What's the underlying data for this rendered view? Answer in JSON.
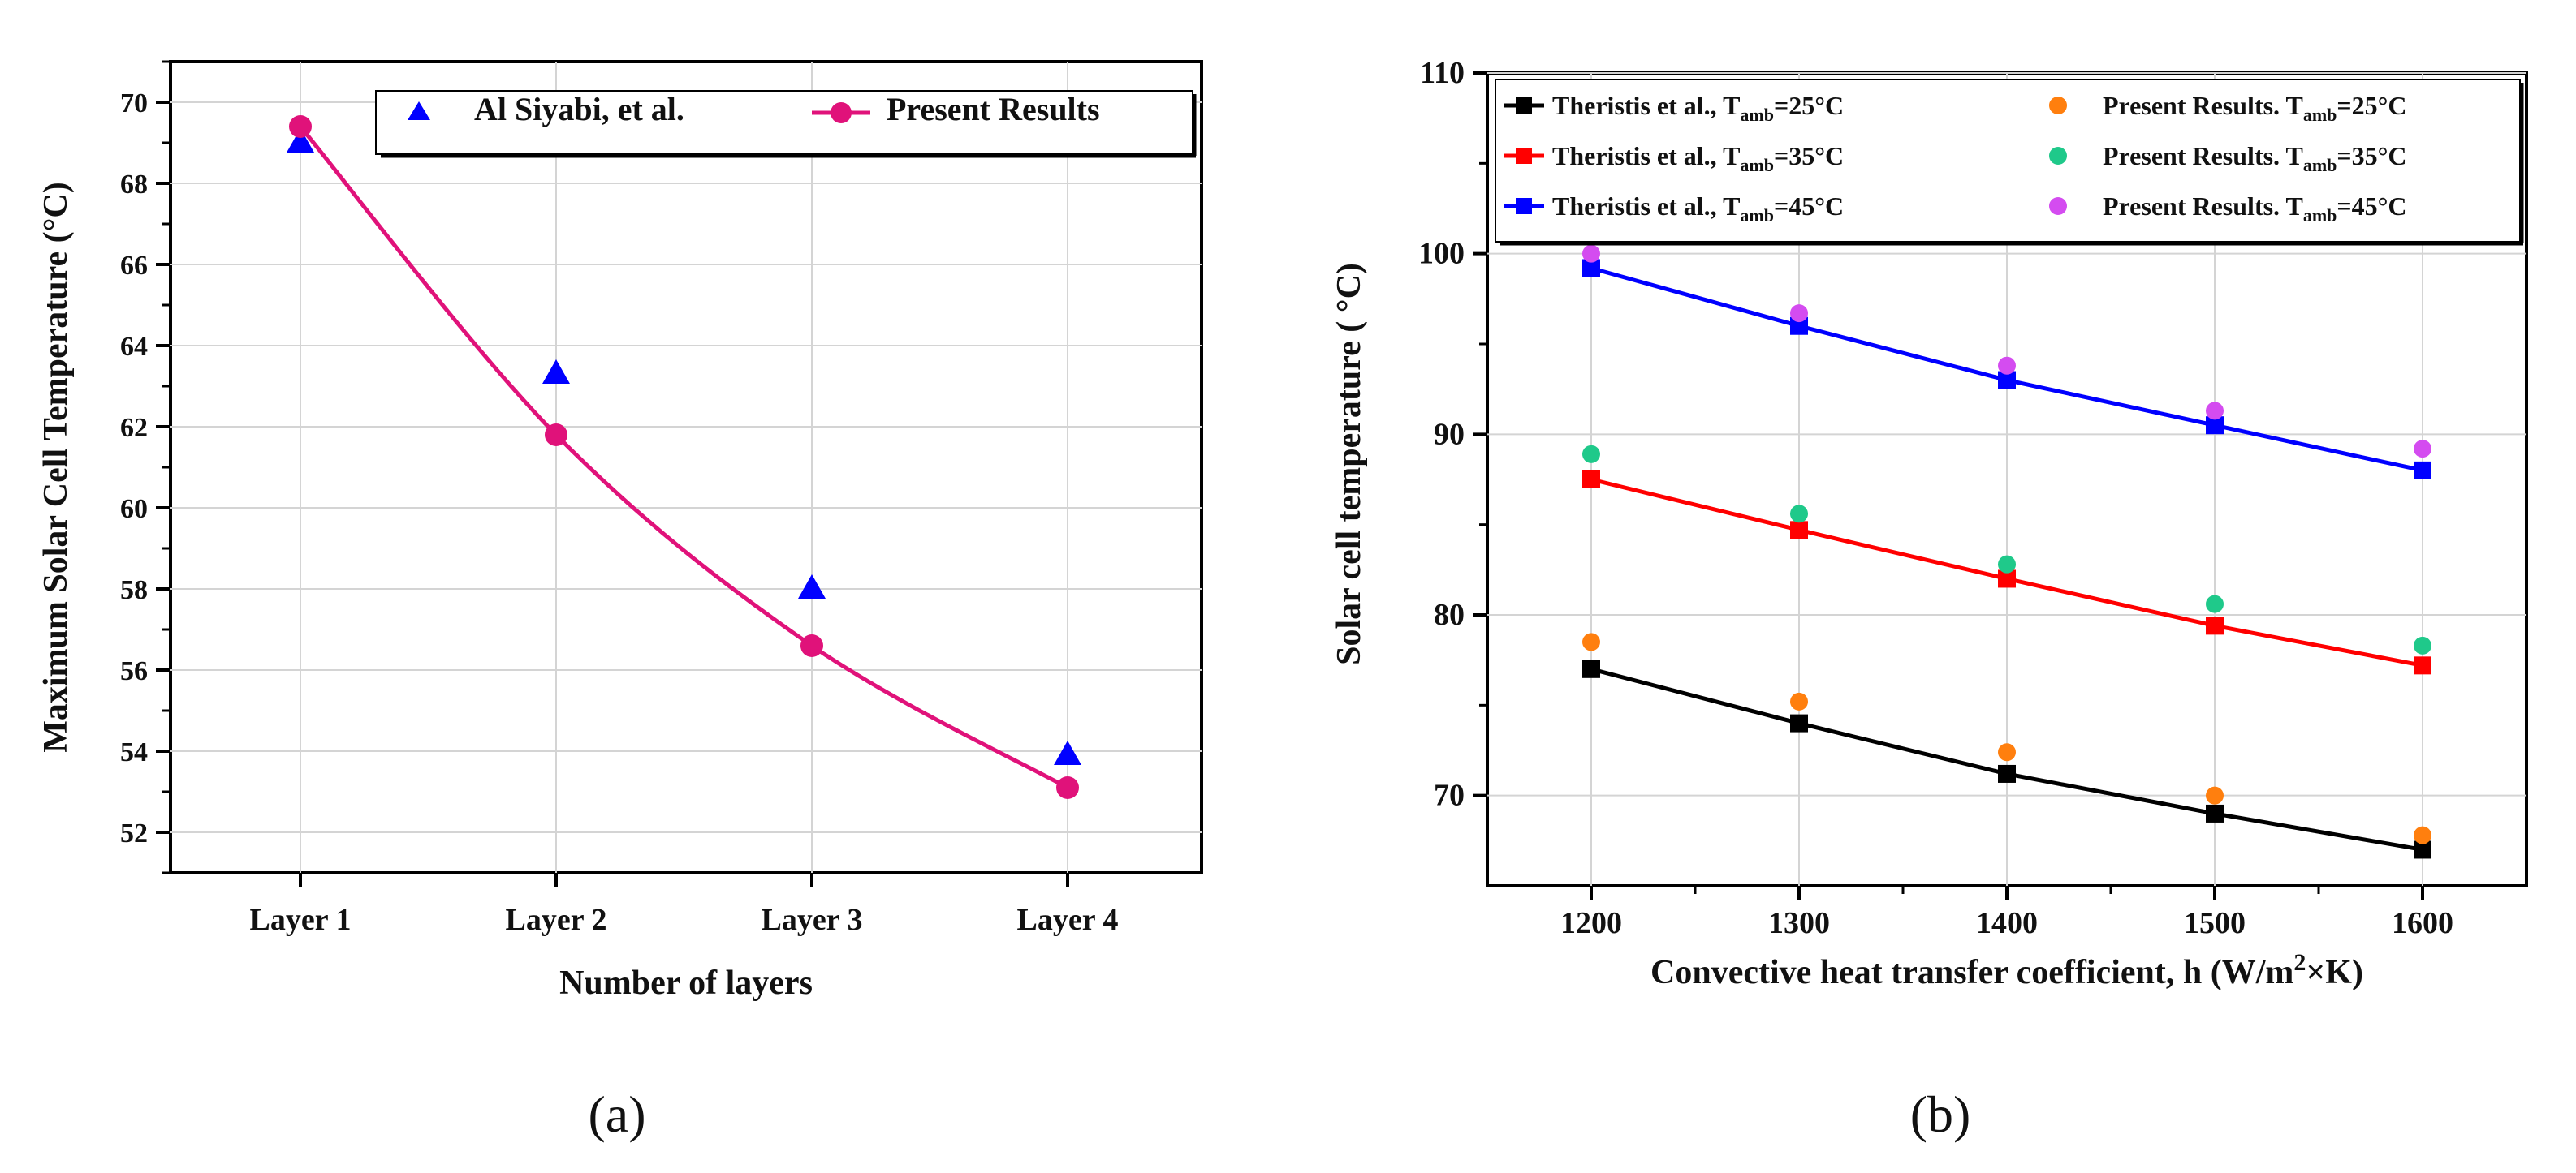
{
  "chart_data": [
    {
      "type": "line",
      "panel_label": "(a)",
      "xlabel": "Number of layers",
      "ylabel": "Maximum Solar Cell Temperature (°C)",
      "categories": [
        "Layer 1",
        "Layer 2",
        "Layer 3",
        "Layer 4"
      ],
      "ylim": [
        51,
        71
      ],
      "yticks": [
        52,
        54,
        56,
        58,
        60,
        62,
        64,
        66,
        68,
        70
      ],
      "grid": true,
      "legend_position": "top-right",
      "series": [
        {
          "name": "Al Siyabi, et al.",
          "marker": "triangle",
          "color": "#0000ff",
          "line": false,
          "values": [
            69.0,
            63.3,
            58.0,
            53.9
          ]
        },
        {
          "name": "Present Results",
          "marker": "circle",
          "color": "#e0127a",
          "line": true,
          "values": [
            69.4,
            61.8,
            56.6,
            53.1
          ]
        }
      ]
    },
    {
      "type": "line",
      "panel_label": "(b)",
      "xlabel_main": "Convective heat transfer coefficient, h (W/m",
      "xlabel_sup": "2",
      "xlabel_end": "×K)",
      "ylabel": "Solar cell temperature ( °C)",
      "x": [
        1200,
        1300,
        1400,
        1500,
        1600
      ],
      "xlim": [
        1150,
        1650
      ],
      "ylim": [
        65,
        110
      ],
      "yticks": [
        70,
        80,
        90,
        100,
        110
      ],
      "grid": true,
      "legend_position": "top",
      "series": [
        {
          "name": "Theristis et al., T",
          "sub": "amb",
          "suffix": "=25°C",
          "marker": "square",
          "color": "#000000",
          "line": true,
          "values": [
            77.0,
            74.0,
            71.2,
            69.0,
            67.0
          ]
        },
        {
          "name": "Theristis et al., T",
          "sub": "amb",
          "suffix": "=35°C",
          "marker": "square",
          "color": "#ff0000",
          "line": true,
          "values": [
            87.5,
            84.7,
            82.0,
            79.4,
            77.2
          ]
        },
        {
          "name": "Theristis et al., T",
          "sub": "amb",
          "suffix": "=45°C",
          "marker": "square",
          "color": "#0000ff",
          "line": true,
          "values": [
            99.2,
            96.0,
            93.0,
            90.5,
            88.0
          ]
        },
        {
          "name": "Present Results. T",
          "sub": "amb",
          "suffix": "=25°C",
          "marker": "circle",
          "color": "#ff7f0e",
          "line": false,
          "values": [
            78.5,
            75.2,
            72.4,
            70.0,
            67.8
          ]
        },
        {
          "name": "Present Results. T",
          "sub": "amb",
          "suffix": "=35°C",
          "marker": "circle",
          "color": "#1fc98a",
          "line": false,
          "values": [
            88.9,
            85.6,
            82.8,
            80.6,
            78.3
          ]
        },
        {
          "name": "Present Results. T",
          "sub": "amb",
          "suffix": "=45°C",
          "marker": "circle",
          "color": "#d44cf0",
          "line": false,
          "values": [
            100.0,
            96.7,
            93.8,
            91.3,
            89.2
          ]
        }
      ]
    }
  ]
}
